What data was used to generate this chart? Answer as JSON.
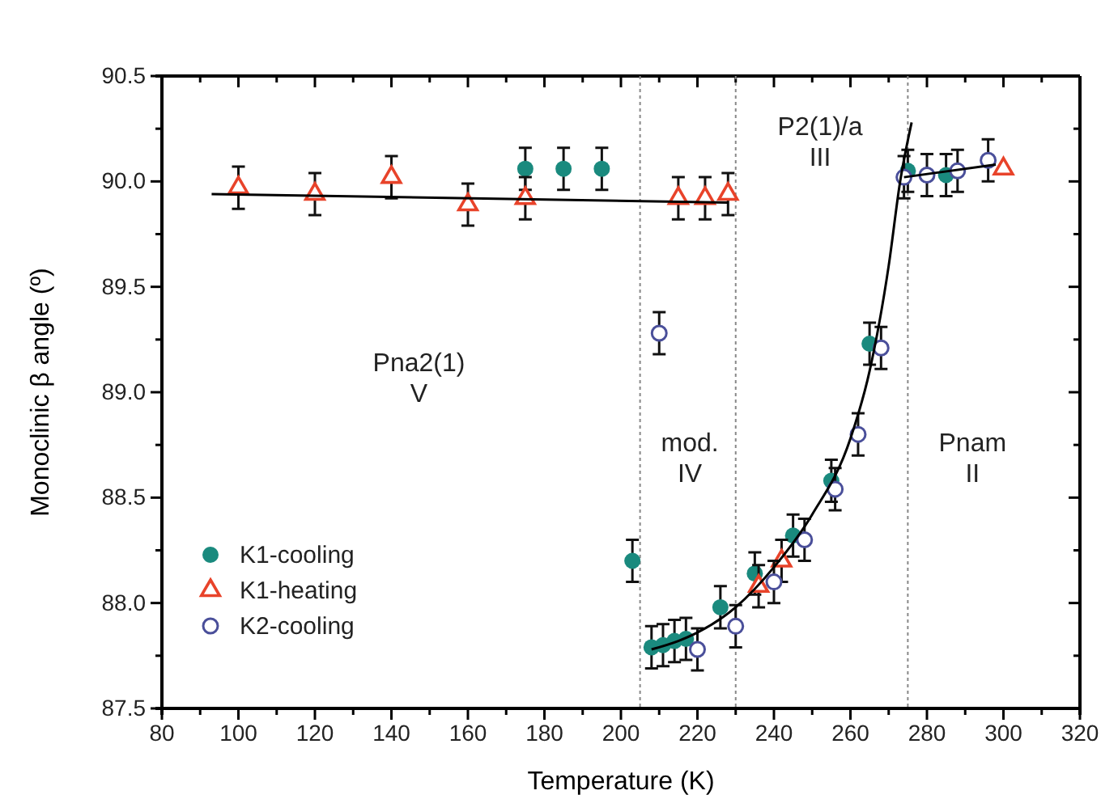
{
  "chart_data": {
    "type": "scatter",
    "xlabel": "Temperature (K)",
    "ylabel": "Monoclinic β angle (º)",
    "xlim": [
      80,
      320
    ],
    "xticks": [
      80,
      100,
      120,
      140,
      160,
      180,
      200,
      220,
      240,
      260,
      280,
      300,
      320
    ],
    "ylim": [
      87.5,
      90.5
    ],
    "yticks": [
      87.5,
      {
        "value": 88,
        "label": "88.0"
      },
      88.5,
      {
        "value": 89,
        "label": "89.0"
      },
      89.5,
      {
        "value": 90,
        "label": "90.0"
      },
      90.5
    ],
    "legend": "bottom left",
    "grid": false,
    "series": [
      {
        "name": "K1-cooling",
        "color": "#1a8a7e",
        "marker": "circle",
        "x": [
          175,
          185,
          195,
          203,
          208,
          211,
          214,
          217,
          226,
          235,
          245,
          255,
          265,
          275,
          285
        ],
        "values": [
          90.06,
          90.06,
          90.06,
          88.2,
          87.79,
          87.8,
          87.82,
          87.83,
          87.98,
          88.14,
          88.32,
          88.58,
          89.23,
          90.05,
          90.03
        ],
        "errors": [
          0.1,
          0.1,
          0.1,
          0.1,
          0.1,
          0.1,
          0.1,
          0.1,
          0.1,
          0.1,
          0.1,
          0.1,
          0.1,
          0.1,
          0.1
        ]
      },
      {
        "name": "K1-heating",
        "color": "#e8432a",
        "marker": "triangle",
        "x": [
          100,
          120,
          140,
          160,
          175,
          215,
          222,
          228,
          236,
          242,
          300
        ],
        "values": [
          89.97,
          89.94,
          90.02,
          89.89,
          89.92,
          89.92,
          89.92,
          89.94,
          88.08,
          88.2,
          90.06
        ],
        "errors": [
          0.1,
          0.1,
          0.1,
          0.1,
          0.1,
          0.1,
          0.1,
          0.1,
          0.1,
          0.1,
          null
        ]
      },
      {
        "name": "K2-cooling",
        "color": "#4a4f9a",
        "marker": "circle_open",
        "x": [
          210,
          220,
          230,
          240,
          248,
          256,
          262,
          268,
          274,
          280,
          288,
          296
        ],
        "values": [
          89.28,
          87.78,
          87.89,
          88.1,
          88.3,
          88.54,
          88.8,
          89.21,
          90.02,
          90.03,
          90.05,
          90.1
        ],
        "errors": [
          0.1,
          0.1,
          0.1,
          0.1,
          0.1,
          0.1,
          0.1,
          0.1,
          0.1,
          0.1,
          0.1,
          0.1
        ]
      },
      {
        "type": "line",
        "color": "#000000",
        "x": [
          93,
          228
        ],
        "values": [
          89.94,
          89.9
        ]
      },
      {
        "type": "line",
        "color": "#000000",
        "x": [
          208,
          215,
          220,
          230,
          240,
          250,
          260,
          265,
          270,
          273,
          276
        ],
        "values": [
          87.78,
          87.82,
          87.86,
          87.98,
          88.17,
          88.42,
          88.78,
          89.1,
          89.6,
          90.0,
          90.28
        ]
      },
      {
        "type": "line",
        "color": "#000000",
        "x": [
          274,
          298
        ],
        "values": [
          90.02,
          90.08
        ]
      }
    ],
    "ref_lines": [
      {
        "axis": "x",
        "value": 205,
        "line_style": "dotted",
        "color": "#888888"
      },
      {
        "axis": "x",
        "value": 230,
        "line_style": "dotted",
        "color": "#888888"
      },
      {
        "axis": "x",
        "value": 275,
        "line_style": "dotted",
        "color": "#888888"
      }
    ],
    "annotations": [
      "Pna2(1)\nV",
      "mod.\nIV",
      "P2(1)/a\nIII",
      "Pnam\nII"
    ]
  }
}
